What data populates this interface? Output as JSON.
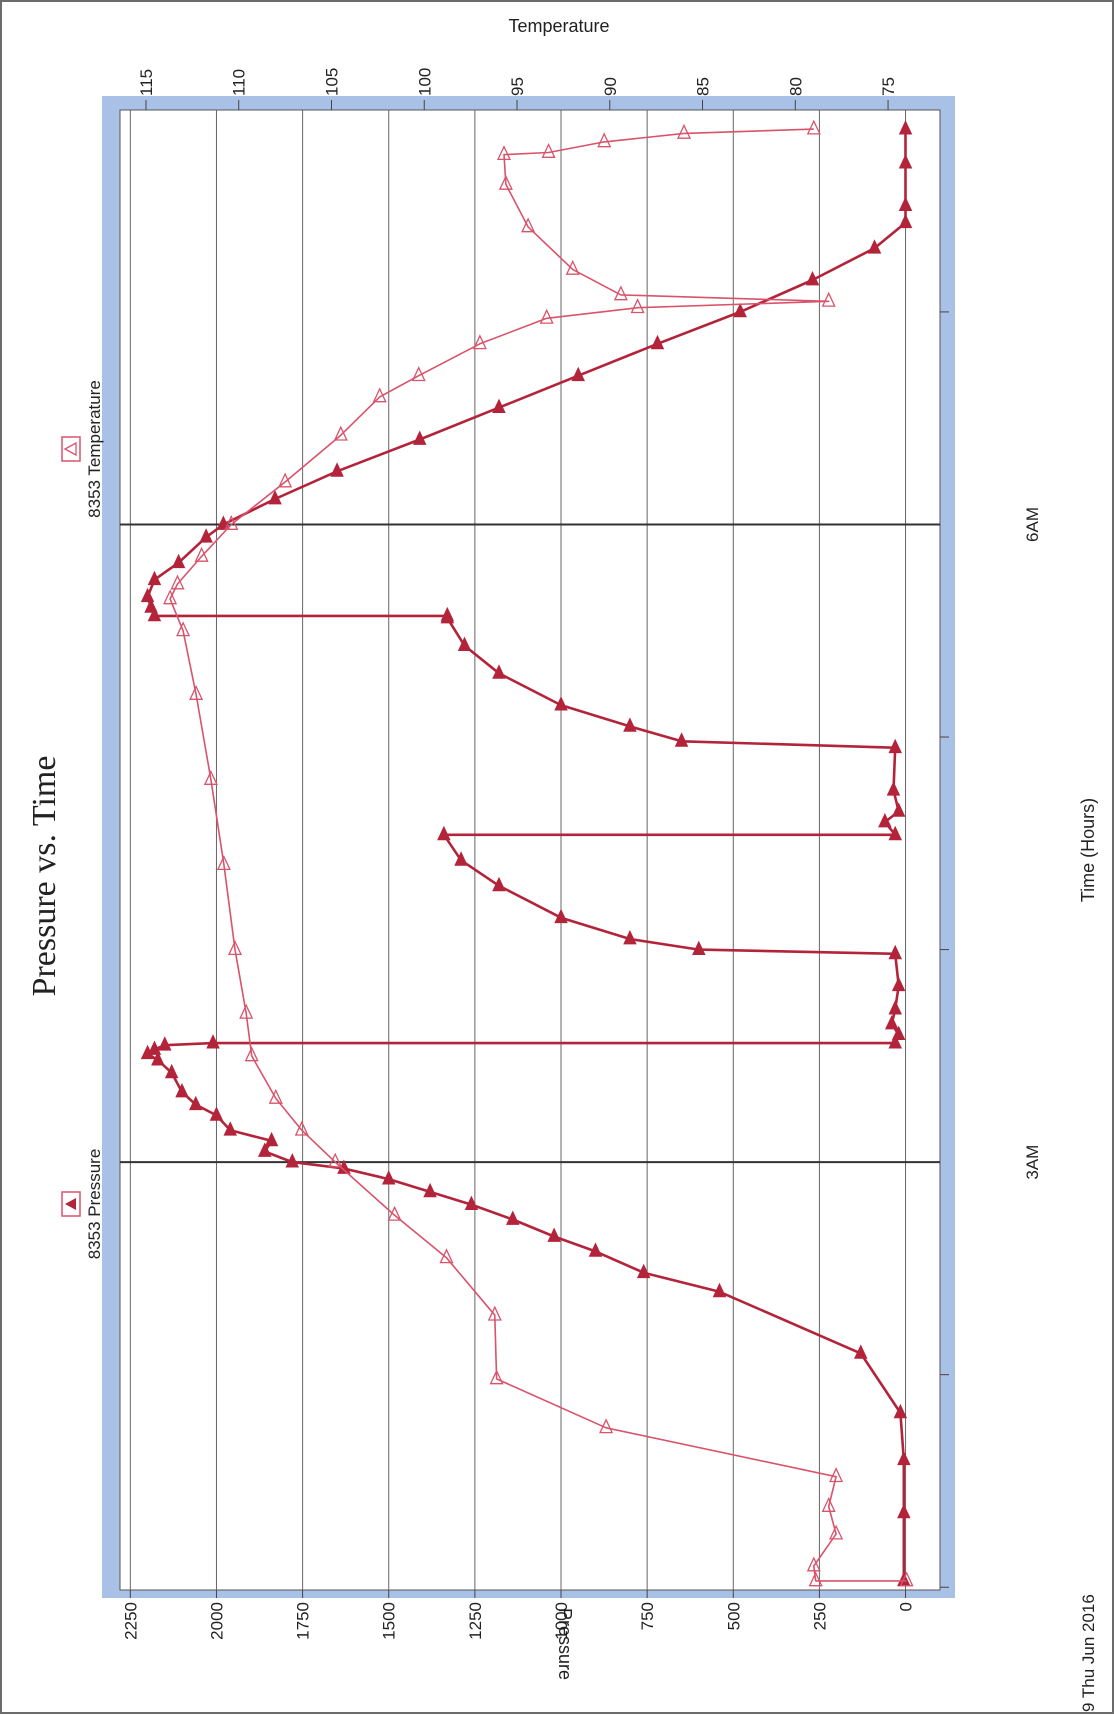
{
  "chart_data": {
    "type": "line",
    "title": "Pressure vs. Time",
    "xlabel": "Time (Hours)",
    "ylabel": "Pressure",
    "y2label": "Temperature",
    "date_label": "9 Thu Jun 2016",
    "x_ticks": [
      {
        "value": 3,
        "label": "3AM"
      },
      {
        "value": 6,
        "label": "6AM"
      }
    ],
    "x_minor_ticks": [
      1,
      2,
      4,
      5,
      7
    ],
    "xlim": [
      0.987,
      7.95
    ],
    "ylim": [
      -100,
      2280
    ],
    "y2lim": [
      72.2,
      116.4
    ],
    "y_ticks": [
      0,
      250,
      500,
      750,
      1000,
      1250,
      1500,
      1750,
      2000,
      2250
    ],
    "y2_ticks": [
      75,
      80,
      85,
      90,
      95,
      100,
      105,
      110,
      115
    ],
    "grid": true,
    "legend": "top",
    "colors": {
      "pressure": "#b3243a",
      "temperature": "#d9536a",
      "frame": "#a9c1e6"
    },
    "series": [
      {
        "name": "8353 Pressure",
        "axis": "left",
        "marker": "filled-triangle",
        "points": [
          [
            1.03,
            5
          ],
          [
            1.35,
            5
          ],
          [
            1.6,
            5
          ],
          [
            1.82,
            15
          ],
          [
            2.1,
            130
          ],
          [
            2.39,
            540
          ],
          [
            2.48,
            760
          ],
          [
            2.58,
            900
          ],
          [
            2.65,
            1020
          ],
          [
            2.73,
            1140
          ],
          [
            2.8,
            1260
          ],
          [
            2.86,
            1380
          ],
          [
            2.92,
            1500
          ],
          [
            2.97,
            1630
          ],
          [
            3.0,
            1780
          ],
          [
            3.05,
            1860
          ],
          [
            3.1,
            1840
          ],
          [
            3.15,
            1960
          ],
          [
            3.22,
            2000
          ],
          [
            3.27,
            2060
          ],
          [
            3.33,
            2100
          ],
          [
            3.42,
            2130
          ],
          [
            3.48,
            2170
          ],
          [
            3.51,
            2200
          ],
          [
            3.53,
            2180
          ],
          [
            3.55,
            2150
          ],
          [
            3.56,
            2010
          ],
          [
            3.56,
            30
          ],
          [
            3.6,
            20
          ],
          [
            3.65,
            40
          ],
          [
            3.72,
            30
          ],
          [
            3.83,
            20
          ],
          [
            3.98,
            30
          ],
          [
            4.0,
            600
          ],
          [
            4.05,
            800
          ],
          [
            4.15,
            1000
          ],
          [
            4.3,
            1180
          ],
          [
            4.42,
            1290
          ],
          [
            4.54,
            1340
          ],
          [
            4.54,
            30
          ],
          [
            4.6,
            60
          ],
          [
            4.65,
            20
          ],
          [
            4.75,
            35
          ],
          [
            4.95,
            30
          ],
          [
            4.98,
            650
          ],
          [
            5.05,
            800
          ],
          [
            5.15,
            1000
          ],
          [
            5.3,
            1180
          ],
          [
            5.43,
            1280
          ],
          [
            5.56,
            1330
          ],
          [
            5.57,
            1330
          ],
          [
            5.57,
            2180
          ],
          [
            5.61,
            2190
          ],
          [
            5.66,
            2200
          ],
          [
            5.74,
            2180
          ],
          [
            5.82,
            2110
          ],
          [
            5.94,
            2030
          ],
          [
            6.0,
            1980
          ],
          [
            6.12,
            1830
          ],
          [
            6.25,
            1650
          ],
          [
            6.4,
            1410
          ],
          [
            6.55,
            1180
          ],
          [
            6.7,
            950
          ],
          [
            6.85,
            720
          ],
          [
            7.0,
            480
          ],
          [
            7.15,
            270
          ],
          [
            7.3,
            90
          ],
          [
            7.42,
            0
          ],
          [
            7.5,
            0
          ],
          [
            7.7,
            0
          ],
          [
            7.86,
            0
          ]
        ]
      },
      {
        "name": "8353 Temperature",
        "axis": "right",
        "marker": "hollow-triangle",
        "points": [
          [
            1.03,
            74.0
          ],
          [
            1.03,
            78.9
          ],
          [
            1.1,
            79.0
          ],
          [
            1.25,
            77.8
          ],
          [
            1.38,
            78.2
          ],
          [
            1.52,
            77.8
          ],
          [
            1.75,
            90.2
          ],
          [
            1.98,
            96.1
          ],
          [
            2.28,
            96.2
          ],
          [
            2.55,
            98.8
          ],
          [
            2.75,
            101.6
          ],
          [
            3.0,
            104.8
          ],
          [
            3.15,
            106.6
          ],
          [
            3.3,
            108.0
          ],
          [
            3.5,
            109.3
          ],
          [
            3.7,
            109.6
          ],
          [
            4.0,
            110.2
          ],
          [
            4.4,
            110.8
          ],
          [
            4.8,
            111.5
          ],
          [
            5.2,
            112.3
          ],
          [
            5.5,
            113.0
          ],
          [
            5.65,
            113.7
          ],
          [
            5.72,
            113.3
          ],
          [
            5.85,
            112.0
          ],
          [
            6.0,
            110.4
          ],
          [
            6.2,
            107.5
          ],
          [
            6.42,
            104.5
          ],
          [
            6.6,
            102.4
          ],
          [
            6.7,
            100.3
          ],
          [
            6.85,
            97.0
          ],
          [
            6.97,
            93.4
          ],
          [
            7.02,
            88.5
          ],
          [
            7.05,
            78.2
          ],
          [
            7.08,
            89.4
          ],
          [
            7.2,
            92.0
          ],
          [
            7.4,
            94.4
          ],
          [
            7.6,
            95.6
          ],
          [
            7.74,
            95.7
          ],
          [
            7.75,
            93.3
          ],
          [
            7.8,
            90.3
          ],
          [
            7.84,
            86.0
          ],
          [
            7.86,
            79.0
          ]
        ]
      }
    ]
  }
}
